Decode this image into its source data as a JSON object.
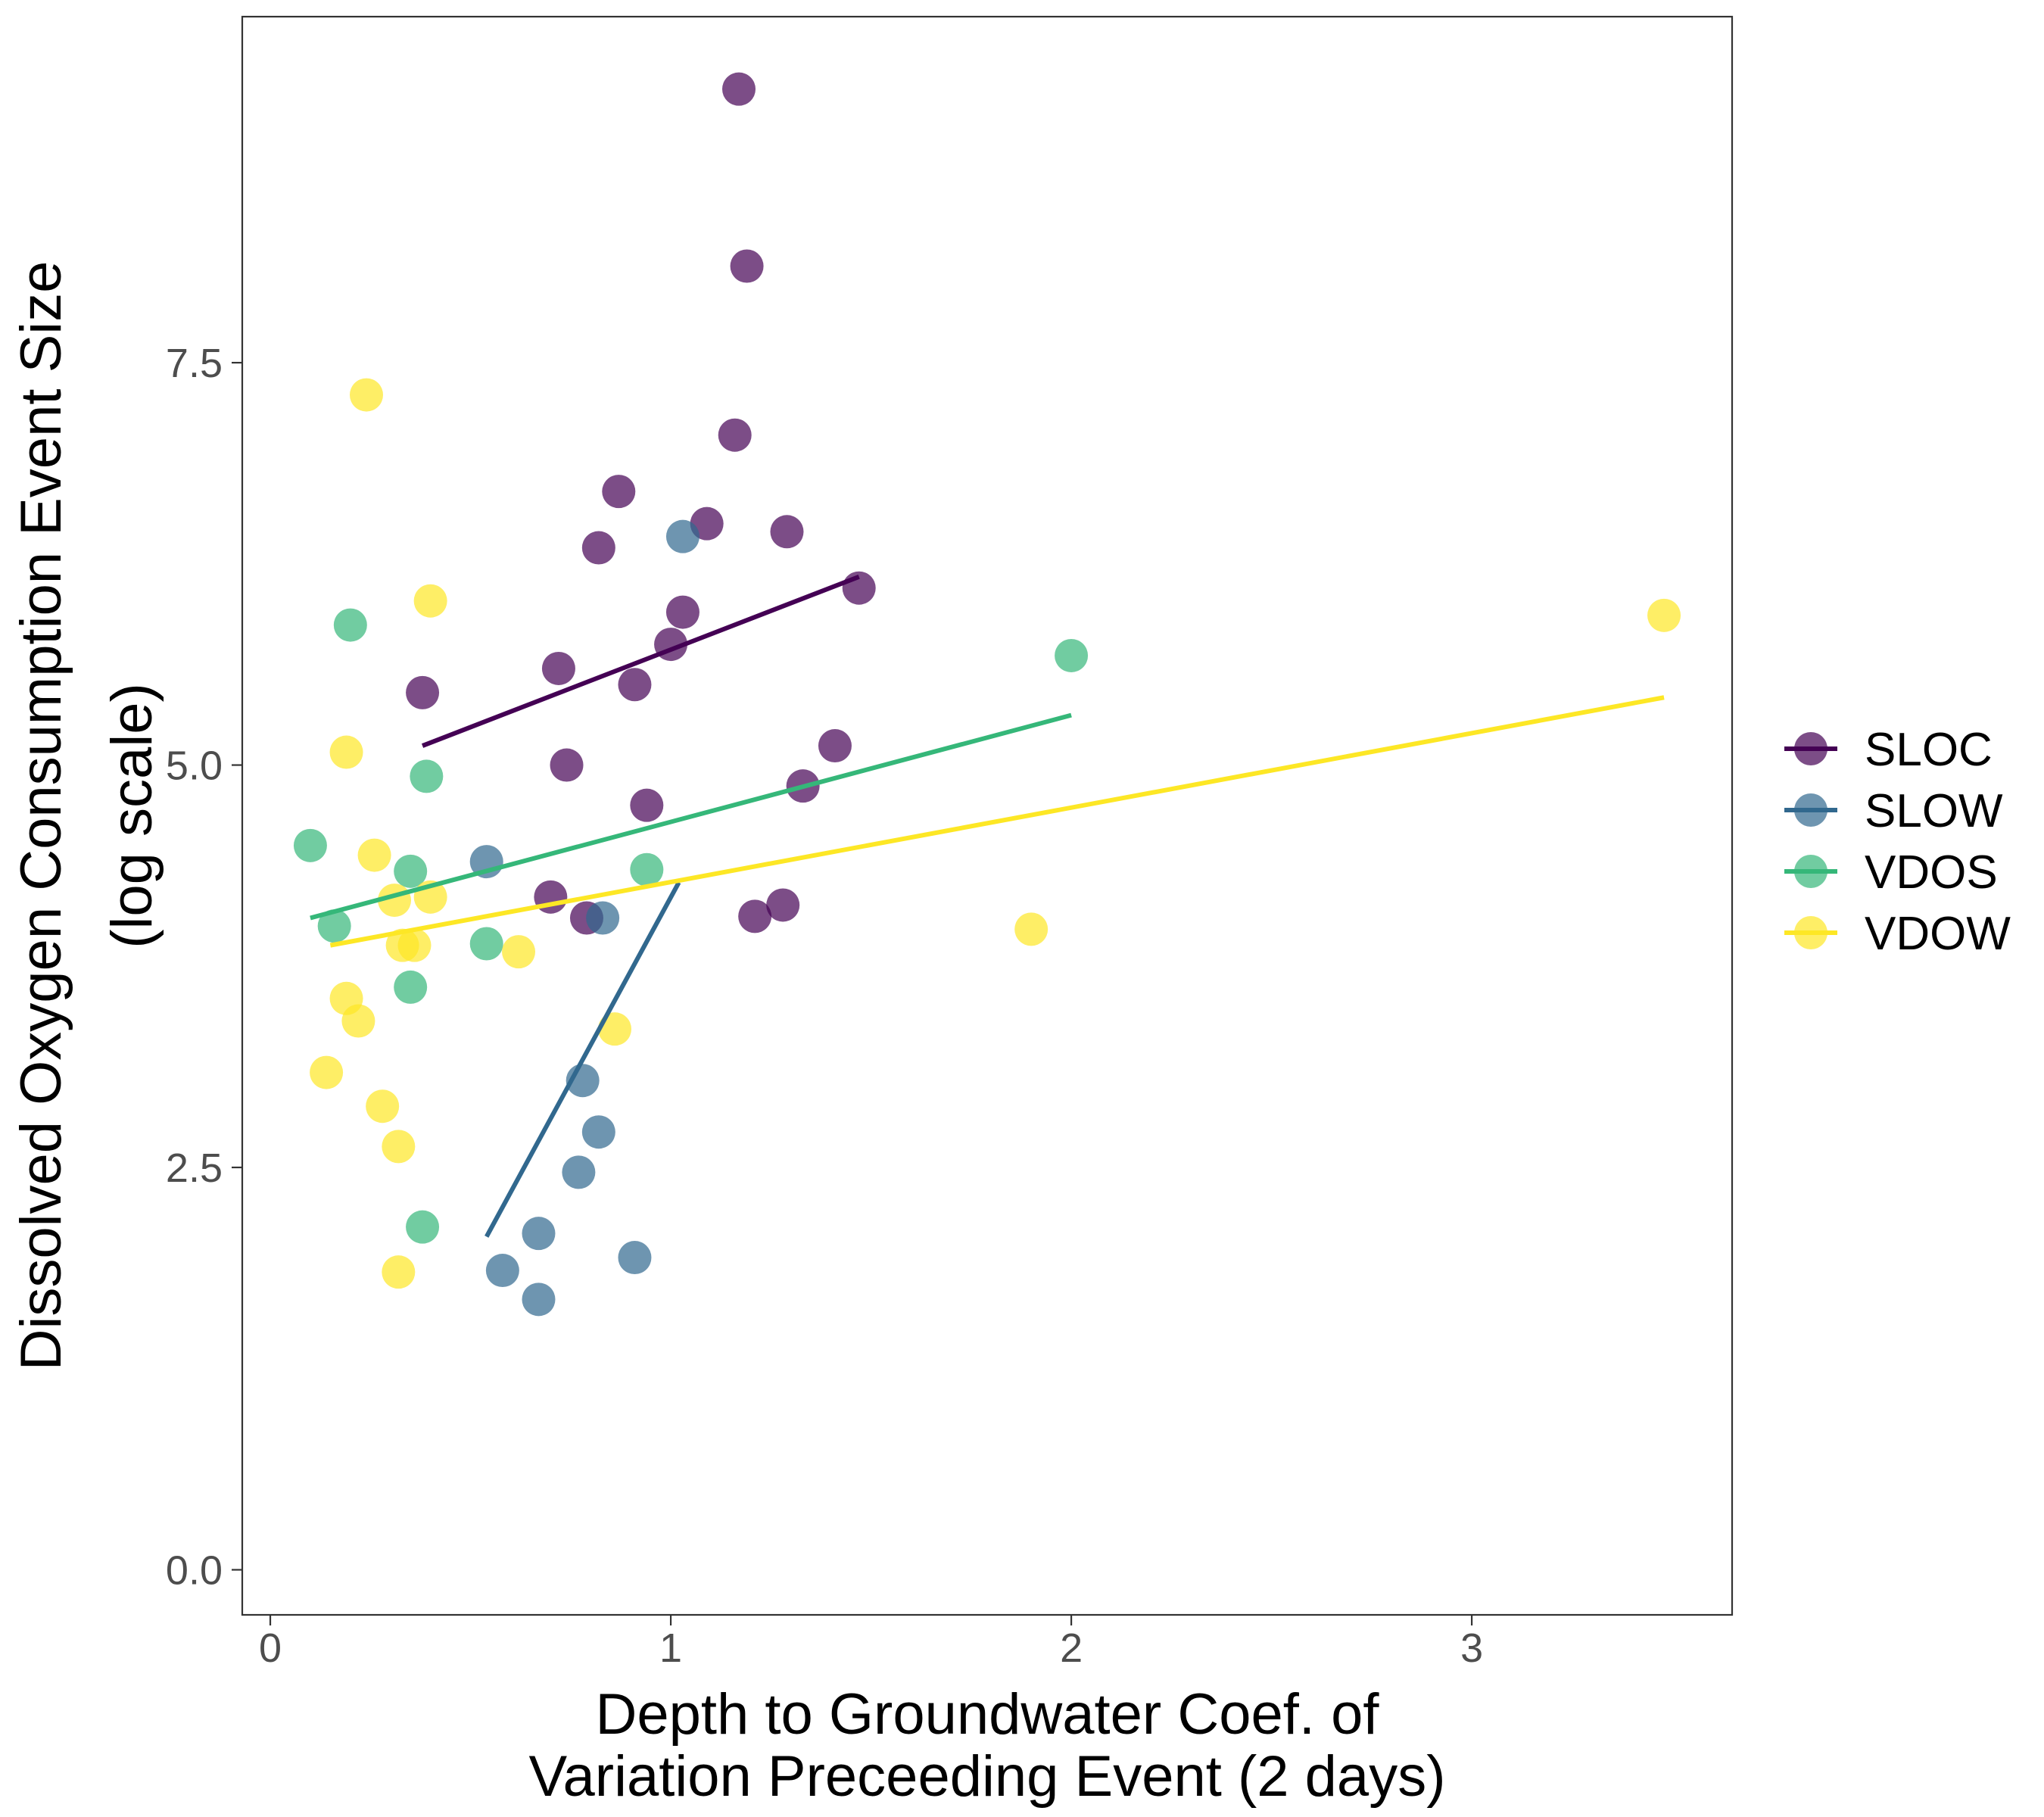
{
  "chart_data": {
    "type": "scatter",
    "xlabel": [
      "Depth to Groundwater Coef. of",
      "Variation Preceeding Event (2 days)"
    ],
    "ylabel": [
      "Dissolved Oxygen Consumption Event Size",
      "(log scale)"
    ],
    "xlim": [
      -0.07,
      3.65
    ],
    "ylim": [
      -0.28,
      9.65
    ],
    "x_ticks": [
      {
        "value": 0,
        "label": "0"
      },
      {
        "value": 1,
        "label": "1"
      },
      {
        "value": 2,
        "label": "2"
      },
      {
        "value": 3,
        "label": "3"
      }
    ],
    "y_ticks": [
      {
        "value": 0,
        "label": "0.0"
      },
      {
        "value": 2.5,
        "label": "2.5"
      },
      {
        "value": 5,
        "label": "5.0"
      },
      {
        "value": 7.5,
        "label": "7.5"
      }
    ],
    "grid": false,
    "legend_position": "right",
    "series": [
      {
        "name": "SLOC",
        "color": "#440154",
        "points": [
          [
            1.17,
            9.2
          ],
          [
            1.19,
            8.1
          ],
          [
            1.16,
            7.05
          ],
          [
            0.87,
            6.7
          ],
          [
            1.09,
            6.5
          ],
          [
            0.82,
            6.35
          ],
          [
            1.29,
            6.45
          ],
          [
            1.47,
            6.1
          ],
          [
            1.03,
            5.95
          ],
          [
            1.0,
            5.75
          ],
          [
            0.72,
            5.6
          ],
          [
            0.38,
            5.45
          ],
          [
            0.91,
            5.5
          ],
          [
            1.41,
            5.12
          ],
          [
            0.74,
            5.0
          ],
          [
            1.33,
            4.87
          ],
          [
            0.94,
            4.75
          ],
          [
            0.7,
            4.18
          ],
          [
            0.79,
            4.05
          ],
          [
            1.28,
            4.13
          ],
          [
            1.21,
            4.06
          ]
        ],
        "fit": [
          [
            0.38,
            5.12
          ],
          [
            1.47,
            6.17
          ]
        ]
      },
      {
        "name": "SLOW",
        "color": "#31688E",
        "points": [
          [
            1.03,
            6.42
          ],
          [
            0.54,
            4.4
          ],
          [
            0.83,
            4.05
          ],
          [
            0.78,
            3.04
          ],
          [
            0.82,
            2.72
          ],
          [
            0.77,
            2.47
          ],
          [
            0.67,
            2.09
          ],
          [
            0.91,
            1.94
          ],
          [
            0.58,
            1.86
          ],
          [
            0.67,
            1.68
          ]
        ],
        "fit": [
          [
            0.54,
            2.07
          ],
          [
            1.02,
            4.27
          ]
        ]
      },
      {
        "name": "VDOS",
        "color": "#35B779",
        "points": [
          [
            0.2,
            5.87
          ],
          [
            2.0,
            5.68
          ],
          [
            0.39,
            4.93
          ],
          [
            0.1,
            4.5
          ],
          [
            0.35,
            4.34
          ],
          [
            0.94,
            4.35
          ],
          [
            0.16,
            4.0
          ],
          [
            0.54,
            3.89
          ],
          [
            0.35,
            3.62
          ],
          [
            0.38,
            2.13
          ]
        ],
        "fit": [
          [
            0.1,
            4.05
          ],
          [
            2.0,
            5.31
          ]
        ]
      },
      {
        "name": "VDOW",
        "color": "#FDE725",
        "points": [
          [
            0.24,
            7.3
          ],
          [
            0.4,
            6.02
          ],
          [
            3.48,
            5.93
          ],
          [
            0.19,
            5.08
          ],
          [
            0.26,
            4.44
          ],
          [
            0.31,
            4.16
          ],
          [
            0.4,
            4.18
          ],
          [
            0.33,
            3.88
          ],
          [
            0.36,
            3.88
          ],
          [
            0.62,
            3.84
          ],
          [
            1.9,
            3.98
          ],
          [
            0.19,
            3.55
          ],
          [
            0.22,
            3.41
          ],
          [
            0.86,
            3.36
          ],
          [
            0.14,
            3.09
          ],
          [
            0.28,
            2.88
          ],
          [
            0.32,
            2.63
          ],
          [
            0.32,
            1.85
          ]
        ],
        "fit": [
          [
            0.15,
            3.88
          ],
          [
            3.48,
            5.42
          ]
        ]
      }
    ]
  }
}
